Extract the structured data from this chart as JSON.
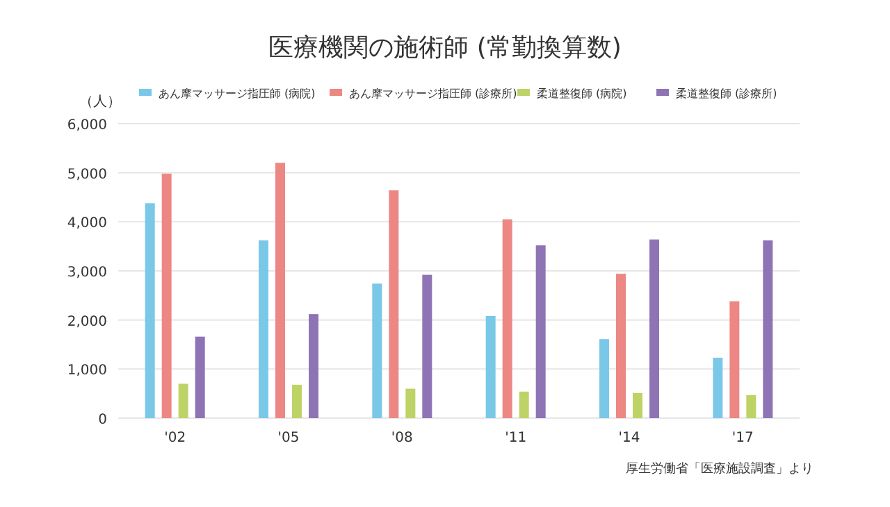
{
  "chart_data": {
    "type": "bar",
    "title": "医療機関の施術師 (常勤換算数)",
    "ylabel": "（人）",
    "categories": [
      "'02",
      "'05",
      "'08",
      "'11",
      "'14",
      "'17"
    ],
    "series": [
      {
        "name": "あん摩マッサージ指圧師 (病院)",
        "color": "#7ac8e8",
        "values": [
          4380,
          3620,
          2740,
          2080,
          1610,
          1230
        ]
      },
      {
        "name": "あん摩マッサージ指圧師 (診療所)",
        "color": "#ec8784",
        "values": [
          4980,
          5200,
          4640,
          4050,
          2940,
          2380
        ]
      },
      {
        "name": "柔道整復師 (病院)",
        "color": "#bed366",
        "values": [
          700,
          680,
          600,
          540,
          510,
          470
        ]
      },
      {
        "name": "柔道整復師 (診療所)",
        "color": "#8e74b4",
        "values": [
          1660,
          2120,
          2920,
          3520,
          3640,
          3620
        ]
      }
    ],
    "ylim": [
      0,
      6000
    ],
    "yticks": [
      {
        "value": 0,
        "label": "0"
      },
      {
        "value": 1000,
        "label": "1,000"
      },
      {
        "value": 2000,
        "label": "2,000"
      },
      {
        "value": 3000,
        "label": "3,000"
      },
      {
        "value": 4000,
        "label": "4,000"
      },
      {
        "value": 5000,
        "label": "5,000"
      },
      {
        "value": 6000,
        "label": "6,000"
      }
    ],
    "grid": "y",
    "legend": "top",
    "annotations": [
      "厚生労働省「医療施設調査」より"
    ]
  }
}
